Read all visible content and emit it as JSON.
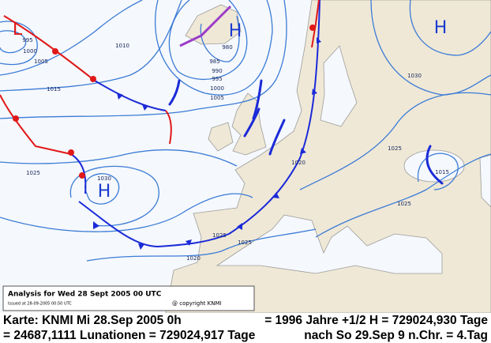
{
  "map": {
    "pressure_centers": [
      "L",
      "H",
      "H",
      "H"
    ],
    "isobar_labels": [
      "995",
      "1000",
      "1005",
      "1010",
      "1015",
      "1025",
      "1030",
      "980",
      "985",
      "990",
      "995",
      "1000",
      "1005",
      "1030",
      "1025",
      "1020",
      "1015",
      "1025",
      "1025",
      "1020",
      "1025"
    ]
  },
  "caption": {
    "title": "Analysis for Wed 28 Sept 2005 00 UTC",
    "issued": "Issued at 28-09-2005 00:50 UTC",
    "copyright": "@ copyright KNMI"
  },
  "footer": {
    "line1_left": "Karte: KNMI Mi 28.Sep 2005 0h",
    "line1_right": "= 1996 Jahre +1/2 H = 729024,930 Tage",
    "line2_left": "= 24687,1111 Lunationen = 729024,917 Tage",
    "line2_right": "nach So 29.Sep 9 n.Chr. = 4.Tag"
  }
}
